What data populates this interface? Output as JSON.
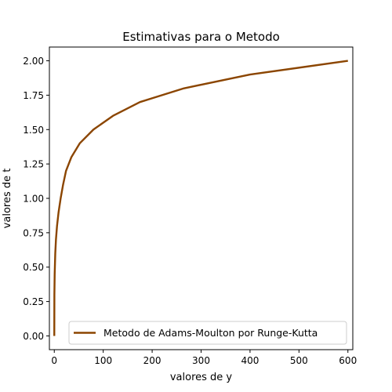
{
  "chart_data": {
    "type": "line",
    "title": "Estimativas para o Metodo",
    "xlabel": "valores de y",
    "ylabel": "valores de t",
    "xlim": [
      -10,
      610
    ],
    "ylim": [
      -0.1,
      2.1
    ],
    "xticks": [
      0,
      100,
      200,
      300,
      400,
      500,
      600
    ],
    "xtick_labels": [
      "0",
      "100",
      "200",
      "300",
      "400",
      "500",
      "600"
    ],
    "yticks": [
      0.0,
      0.25,
      0.5,
      0.75,
      1.0,
      1.25,
      1.5,
      1.75,
      2.0
    ],
    "ytick_labels": [
      "0.00",
      "0.25",
      "0.50",
      "0.75",
      "1.00",
      "1.25",
      "1.50",
      "1.75",
      "2.00"
    ],
    "grid": false,
    "legend_position": "bottom-right",
    "series": [
      {
        "name": "Metodo de Adams-Moulton por Runge-Kutta",
        "color": "#8b4500",
        "x": [
          0,
          0.2,
          0.8,
          2,
          3.4,
          5.6,
          8.8,
          13,
          18,
          24,
          35,
          52,
          80,
          120,
          175,
          265,
          400,
          600
        ],
        "y": [
          0,
          0.3,
          0.45,
          0.6,
          0.7,
          0.8,
          0.9,
          1.0,
          1.1,
          1.2,
          1.3,
          1.4,
          1.5,
          1.6,
          1.7,
          1.8,
          1.9,
          2.0
        ]
      }
    ]
  }
}
